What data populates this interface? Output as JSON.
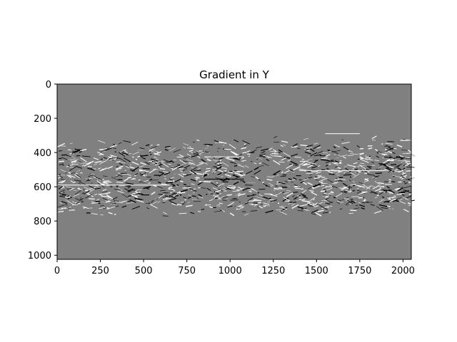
{
  "chart_data": {
    "type": "heatmap",
    "title": "Gradient in Y",
    "colormap": "gray",
    "background_value_color": "#808080",
    "xlim": [
      0,
      2048
    ],
    "ylim": [
      1024,
      0
    ],
    "x_ticks": [
      0,
      250,
      500,
      750,
      1000,
      1250,
      1500,
      1750,
      2000
    ],
    "x_tick_labels": [
      "0",
      "250",
      "500",
      "750",
      "1000",
      "1250",
      "1500",
      "1750",
      "2000"
    ],
    "y_ticks": [
      0,
      200,
      400,
      600,
      800,
      1000
    ],
    "y_tick_labels": [
      "0",
      "200",
      "400",
      "600",
      "800",
      "1000"
    ],
    "detail_band_y": [
      310,
      780
    ],
    "grid": false,
    "legend": "none"
  }
}
